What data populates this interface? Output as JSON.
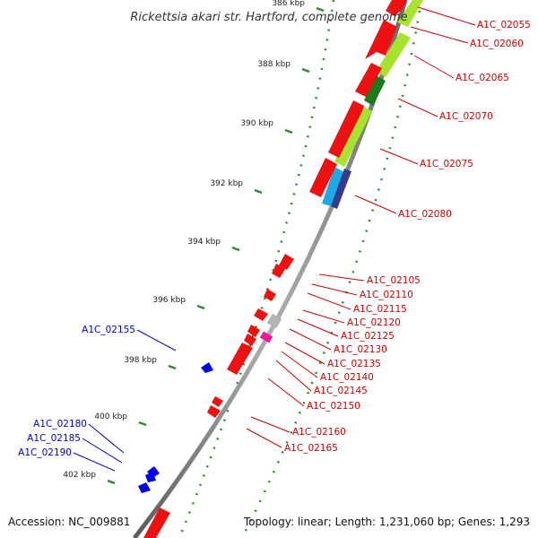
{
  "title": "Rickettsia akari str. Hartford, complete genome",
  "accession": "Accession: NC_009881",
  "summary": "Topology: linear; Length: 1,231,060 bp; Genes: 1,293",
  "colors": {
    "forward_gene": "#ee1111",
    "reverse_gene": "#0000ee",
    "label_red": "#cc0000",
    "label_blue": "#0000cc",
    "backbone": "#8a8a8a",
    "ticks": "#2d8a2d",
    "cds_lime": "#a6e22e",
    "cds_darkgreen": "#1b7a1b",
    "cds_cyan": "#1ea8e6",
    "cds_navy": "#3a3a8c",
    "gray_feature": "#b4b4b4",
    "pink_feature": "#ee1a96"
  },
  "axis": {
    "unit": "kbp",
    "ticks": [
      {
        "label": "386 kbp",
        "kbp": 386
      },
      {
        "label": "388 kbp",
        "kbp": 388
      },
      {
        "label": "390 kbp",
        "kbp": 390
      },
      {
        "label": "392 kbp",
        "kbp": 392
      },
      {
        "label": "394 kbp",
        "kbp": 394
      },
      {
        "label": "396 kbp",
        "kbp": 396
      },
      {
        "label": "398 kbp",
        "kbp": 398
      },
      {
        "label": "400 kbp",
        "kbp": 400
      },
      {
        "label": "402 kbp",
        "kbp": 402
      }
    ]
  },
  "forward_labels": [
    "A1C_02055",
    "A1C_02060",
    "A1C_02065",
    "A1C_02070",
    "A1C_02075",
    "A1C_02080",
    "A1C_02105",
    "A1C_02110",
    "A1C_02115",
    "A1C_02120",
    "A1C_02125",
    "A1C_02130",
    "A1C_02135",
    "A1C_02140",
    "A1C_02145",
    "A1C_02150",
    "A1C_02160",
    "A1C_02165"
  ],
  "reverse_labels": [
    "A1C_02155",
    "A1C_02180",
    "A1C_02185",
    "A1C_02190"
  ]
}
